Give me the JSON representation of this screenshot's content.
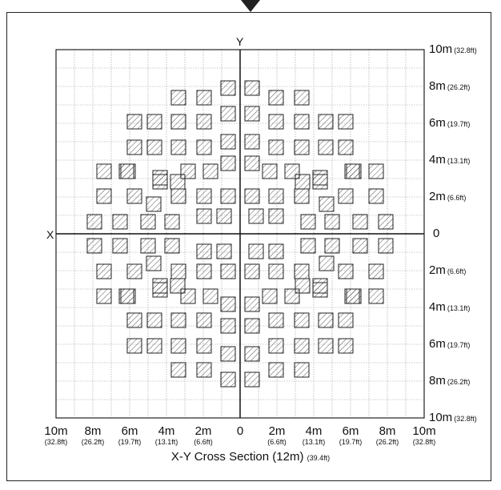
{
  "diagram": {
    "x_axis_name": "X",
    "y_axis_name": "Y",
    "right_labels": [
      {
        "main": "10m",
        "sub": "(32.8ft)"
      },
      {
        "main": "8m",
        "sub": "(26.2ft)"
      },
      {
        "main": "6m",
        "sub": "(19.7ft)"
      },
      {
        "main": "4m",
        "sub": "(13.1ft)"
      },
      {
        "main": "2m",
        "sub": "(6.6ft)"
      },
      {
        "main": "0",
        "sub": ""
      },
      {
        "main": "2m",
        "sub": "(6.6ft)"
      },
      {
        "main": "4m",
        "sub": "(13.1ft)"
      },
      {
        "main": "6m",
        "sub": "(19.7ft)"
      },
      {
        "main": "8m",
        "sub": "(26.2ft)"
      },
      {
        "main": "10m",
        "sub": "(32.8ft)"
      }
    ],
    "bottom_labels": [
      {
        "main": "10m",
        "sub": "(32.8ft)"
      },
      {
        "main": "8m",
        "sub": "(26.2ft)"
      },
      {
        "main": "6m",
        "sub": "(19.7ft)"
      },
      {
        "main": "4m",
        "sub": "(13.1ft)"
      },
      {
        "main": "2m",
        "sub": "(6.6ft)"
      },
      {
        "main": "0",
        "sub": ""
      },
      {
        "main": "2m",
        "sub": "(6.6ft)"
      },
      {
        "main": "4m",
        "sub": "(13.1ft)"
      },
      {
        "main": "6m",
        "sub": "(19.7ft)"
      },
      {
        "main": "8m",
        "sub": "(26.2ft)"
      },
      {
        "main": "10m",
        "sub": "(32.8ft)"
      }
    ],
    "caption": "X-Y Cross Section (12m)",
    "caption_sub": "(39.4ft)",
    "colors": {
      "line": "#222222",
      "grid": "#999999",
      "hatch": "#333333"
    }
  }
}
